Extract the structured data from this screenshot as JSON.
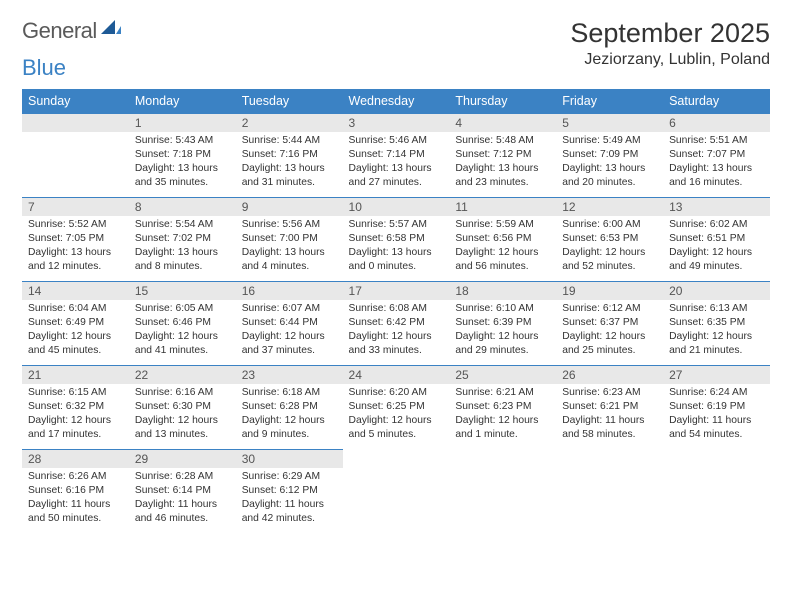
{
  "logo": {
    "text1": "General",
    "text2": "Blue"
  },
  "title": "September 2025",
  "location": "Jeziorzany, Lublin, Poland",
  "colors": {
    "header_bg": "#3b82c4",
    "header_text": "#ffffff",
    "daynum_bg": "#e8e8e8",
    "cell_border": "#3b82c4",
    "body_text": "#333333",
    "logo_gray": "#5a5a5a",
    "logo_blue": "#3b82c4",
    "page_bg": "#ffffff"
  },
  "typography": {
    "title_fontsize": 27,
    "location_fontsize": 16,
    "weekday_fontsize": 12.5,
    "daynum_fontsize": 12,
    "body_fontsize": 10.3,
    "logo_fontsize": 22
  },
  "weekdays": [
    "Sunday",
    "Monday",
    "Tuesday",
    "Wednesday",
    "Thursday",
    "Friday",
    "Saturday"
  ],
  "first_weekday_index": 1,
  "days": [
    {
      "n": 1,
      "sunrise": "5:43 AM",
      "sunset": "7:18 PM",
      "daylight": "13 hours and 35 minutes."
    },
    {
      "n": 2,
      "sunrise": "5:44 AM",
      "sunset": "7:16 PM",
      "daylight": "13 hours and 31 minutes."
    },
    {
      "n": 3,
      "sunrise": "5:46 AM",
      "sunset": "7:14 PM",
      "daylight": "13 hours and 27 minutes."
    },
    {
      "n": 4,
      "sunrise": "5:48 AM",
      "sunset": "7:12 PM",
      "daylight": "13 hours and 23 minutes."
    },
    {
      "n": 5,
      "sunrise": "5:49 AM",
      "sunset": "7:09 PM",
      "daylight": "13 hours and 20 minutes."
    },
    {
      "n": 6,
      "sunrise": "5:51 AM",
      "sunset": "7:07 PM",
      "daylight": "13 hours and 16 minutes."
    },
    {
      "n": 7,
      "sunrise": "5:52 AM",
      "sunset": "7:05 PM",
      "daylight": "13 hours and 12 minutes."
    },
    {
      "n": 8,
      "sunrise": "5:54 AM",
      "sunset": "7:02 PM",
      "daylight": "13 hours and 8 minutes."
    },
    {
      "n": 9,
      "sunrise": "5:56 AM",
      "sunset": "7:00 PM",
      "daylight": "13 hours and 4 minutes."
    },
    {
      "n": 10,
      "sunrise": "5:57 AM",
      "sunset": "6:58 PM",
      "daylight": "13 hours and 0 minutes."
    },
    {
      "n": 11,
      "sunrise": "5:59 AM",
      "sunset": "6:56 PM",
      "daylight": "12 hours and 56 minutes."
    },
    {
      "n": 12,
      "sunrise": "6:00 AM",
      "sunset": "6:53 PM",
      "daylight": "12 hours and 52 minutes."
    },
    {
      "n": 13,
      "sunrise": "6:02 AM",
      "sunset": "6:51 PM",
      "daylight": "12 hours and 49 minutes."
    },
    {
      "n": 14,
      "sunrise": "6:04 AM",
      "sunset": "6:49 PM",
      "daylight": "12 hours and 45 minutes."
    },
    {
      "n": 15,
      "sunrise": "6:05 AM",
      "sunset": "6:46 PM",
      "daylight": "12 hours and 41 minutes."
    },
    {
      "n": 16,
      "sunrise": "6:07 AM",
      "sunset": "6:44 PM",
      "daylight": "12 hours and 37 minutes."
    },
    {
      "n": 17,
      "sunrise": "6:08 AM",
      "sunset": "6:42 PM",
      "daylight": "12 hours and 33 minutes."
    },
    {
      "n": 18,
      "sunrise": "6:10 AM",
      "sunset": "6:39 PM",
      "daylight": "12 hours and 29 minutes."
    },
    {
      "n": 19,
      "sunrise": "6:12 AM",
      "sunset": "6:37 PM",
      "daylight": "12 hours and 25 minutes."
    },
    {
      "n": 20,
      "sunrise": "6:13 AM",
      "sunset": "6:35 PM",
      "daylight": "12 hours and 21 minutes."
    },
    {
      "n": 21,
      "sunrise": "6:15 AM",
      "sunset": "6:32 PM",
      "daylight": "12 hours and 17 minutes."
    },
    {
      "n": 22,
      "sunrise": "6:16 AM",
      "sunset": "6:30 PM",
      "daylight": "12 hours and 13 minutes."
    },
    {
      "n": 23,
      "sunrise": "6:18 AM",
      "sunset": "6:28 PM",
      "daylight": "12 hours and 9 minutes."
    },
    {
      "n": 24,
      "sunrise": "6:20 AM",
      "sunset": "6:25 PM",
      "daylight": "12 hours and 5 minutes."
    },
    {
      "n": 25,
      "sunrise": "6:21 AM",
      "sunset": "6:23 PM",
      "daylight": "12 hours and 1 minute."
    },
    {
      "n": 26,
      "sunrise": "6:23 AM",
      "sunset": "6:21 PM",
      "daylight": "11 hours and 58 minutes."
    },
    {
      "n": 27,
      "sunrise": "6:24 AM",
      "sunset": "6:19 PM",
      "daylight": "11 hours and 54 minutes."
    },
    {
      "n": 28,
      "sunrise": "6:26 AM",
      "sunset": "6:16 PM",
      "daylight": "11 hours and 50 minutes."
    },
    {
      "n": 29,
      "sunrise": "6:28 AM",
      "sunset": "6:14 PM",
      "daylight": "11 hours and 46 minutes."
    },
    {
      "n": 30,
      "sunrise": "6:29 AM",
      "sunset": "6:12 PM",
      "daylight": "11 hours and 42 minutes."
    }
  ],
  "labels": {
    "sunrise": "Sunrise:",
    "sunset": "Sunset:",
    "daylight": "Daylight:"
  }
}
